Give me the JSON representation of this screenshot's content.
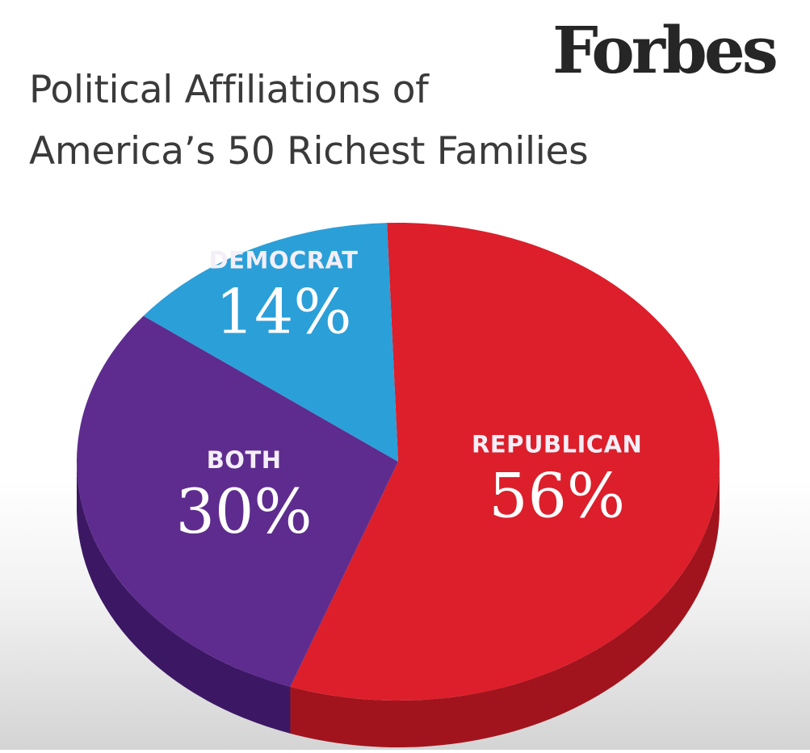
{
  "header": {
    "title_line1": "Political Affiliations of",
    "title_line2": "America’s 50 Richest Families",
    "brand": "Forbes"
  },
  "chart_data": {
    "type": "pie",
    "title": "Political Affiliations of America’s 50 Richest Families",
    "unit": "%",
    "slices": [
      {
        "name": "REPUBLICAN",
        "value": 56,
        "label": "56%",
        "color": "#dc1f2b",
        "side_color": "#a2141d"
      },
      {
        "name": "BOTH",
        "value": 30,
        "label": "30%",
        "color": "#5e2c8e",
        "side_color": "#3c1864"
      },
      {
        "name": "DEMOCRAT",
        "value": 14,
        "label": "14%",
        "color": "#2b9fd8",
        "side_color": "#1d78a8"
      }
    ],
    "start_angle_deg": -92,
    "direction": "clockwise",
    "legend": "none"
  }
}
